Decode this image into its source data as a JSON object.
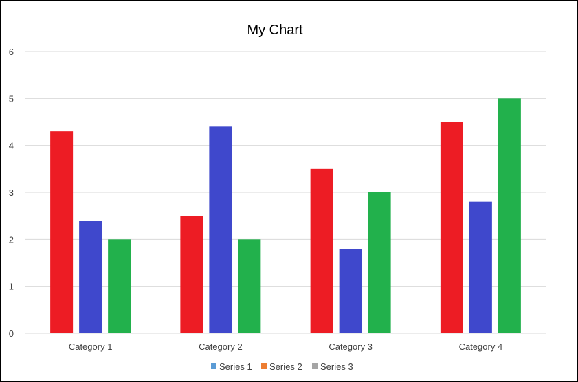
{
  "chart_data": {
    "type": "bar",
    "title": "My Chart",
    "categories": [
      "Category 1",
      "Category 2",
      "Category 3",
      "Category 4"
    ],
    "series": [
      {
        "name": "Series 1",
        "values": [
          4.3,
          2.5,
          3.5,
          4.5
        ],
        "bar_color": "#ed1c24",
        "legend_color": "#5b9bd5"
      },
      {
        "name": "Series 2",
        "values": [
          2.4,
          4.4,
          1.8,
          2.8
        ],
        "bar_color": "#3f48cc",
        "legend_color": "#ed7d31"
      },
      {
        "name": "Series 3",
        "values": [
          2.0,
          2.0,
          3.0,
          5.0
        ],
        "bar_color": "#22b14c",
        "legend_color": "#a5a5a5"
      }
    ],
    "yticks": [
      0,
      1,
      2,
      3,
      4,
      5,
      6
    ],
    "ylim": [
      0,
      6
    ],
    "grid": true,
    "legend_position": "bottom"
  }
}
